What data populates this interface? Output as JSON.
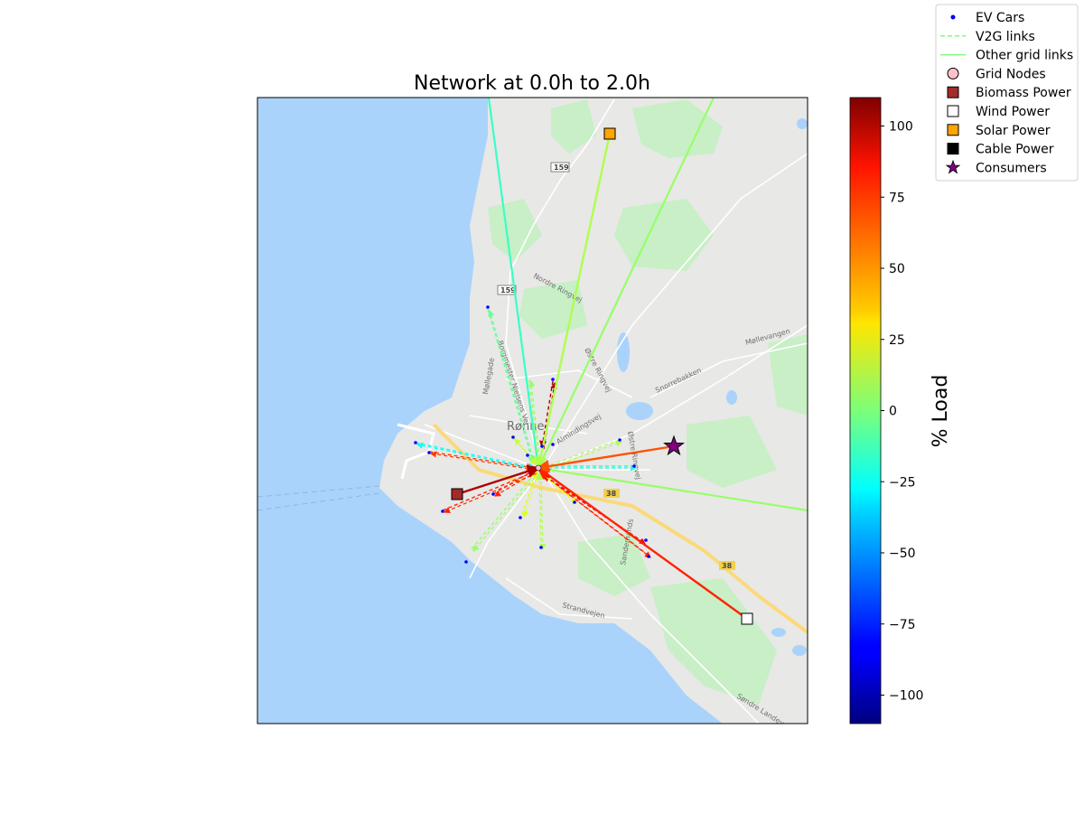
{
  "chart_data": {
    "type": "network-map",
    "title": "Network at 0.0h to 2.0h",
    "colorbar": {
      "label": "% Load",
      "range": [
        -110,
        110
      ],
      "ticks": [
        -100,
        -75,
        -50,
        -25,
        0,
        25,
        50,
        75,
        100
      ],
      "tick_labels": [
        "−100",
        "−75",
        "−50",
        "−25",
        "0",
        "25",
        "50",
        "75",
        "100"
      ],
      "colormap": "jet"
    },
    "legend": {
      "placement": "top-right outside",
      "entries": [
        {
          "label": "EV Cars",
          "marker": "dot",
          "color": "#0000ff"
        },
        {
          "label": "V2G links",
          "marker": "dashed-line",
          "color": "#7cff79"
        },
        {
          "label": "Other grid links",
          "marker": "solid-line",
          "color": "#7cff79"
        },
        {
          "label": "Grid Nodes",
          "marker": "circle",
          "color": "#ffc0cb"
        },
        {
          "label": "Biomass Power",
          "marker": "square",
          "color": "#a52a2a"
        },
        {
          "label": "Wind Power",
          "marker": "square",
          "color": "#ffffff"
        },
        {
          "label": "Solar Power",
          "marker": "square",
          "color": "#ffa500"
        },
        {
          "label": "Cable Power",
          "marker": "square",
          "color": "#000000"
        },
        {
          "label": "Consumers",
          "marker": "star",
          "color": "#800080"
        }
      ]
    },
    "map_labels": [
      {
        "text": "Rønne",
        "kind": "town"
      },
      {
        "text": "159",
        "kind": "shield"
      },
      {
        "text": "159",
        "kind": "shield"
      },
      {
        "text": "38",
        "kind": "shield-yellow"
      },
      {
        "text": "38",
        "kind": "shield-yellow"
      },
      {
        "text": "Nordre Ringvej",
        "kind": "street"
      },
      {
        "text": "Østre Ringvej",
        "kind": "street"
      },
      {
        "text": "Snorrebakken",
        "kind": "street"
      },
      {
        "text": "Møllevangen",
        "kind": "street"
      },
      {
        "text": "Almindingsvej",
        "kind": "street"
      },
      {
        "text": "Østre Ringvej",
        "kind": "street"
      },
      {
        "text": "Strandvejen",
        "kind": "street"
      },
      {
        "text": "Søndre Landevej",
        "kind": "street"
      },
      {
        "text": "Møllegade",
        "kind": "street"
      },
      {
        "text": "Borgmester Nielsens Vej",
        "kind": "street"
      },
      {
        "text": "Sandemands",
        "kind": "street"
      }
    ],
    "power_plants": [
      {
        "type": "Biomass Power",
        "load": 100,
        "to": "hub"
      },
      {
        "type": "Solar Power",
        "load": 10,
        "to": "hub"
      },
      {
        "type": "Wind Power",
        "load": 75,
        "to": "hub"
      },
      {
        "type": "Consumers",
        "load": 65,
        "to": "hub"
      }
    ],
    "grid_links": [
      {
        "name": "north-link",
        "load": -15
      },
      {
        "name": "northeast-link",
        "load": 5
      },
      {
        "name": "east-link",
        "load": 5
      }
    ],
    "v2g_links": [
      {
        "load": -5
      },
      {
        "load": 100
      },
      {
        "load": 70
      },
      {
        "load": 75
      },
      {
        "load": 5
      },
      {
        "load": -25
      },
      {
        "load": -20
      },
      {
        "load": 75
      },
      {
        "load": 85
      },
      {
        "load": 10
      },
      {
        "load": 20
      },
      {
        "load": 25
      },
      {
        "load": 10
      },
      {
        "load": 15
      },
      {
        "load": 75
      },
      {
        "load": 5
      }
    ],
    "ev_cars_count": 18
  }
}
